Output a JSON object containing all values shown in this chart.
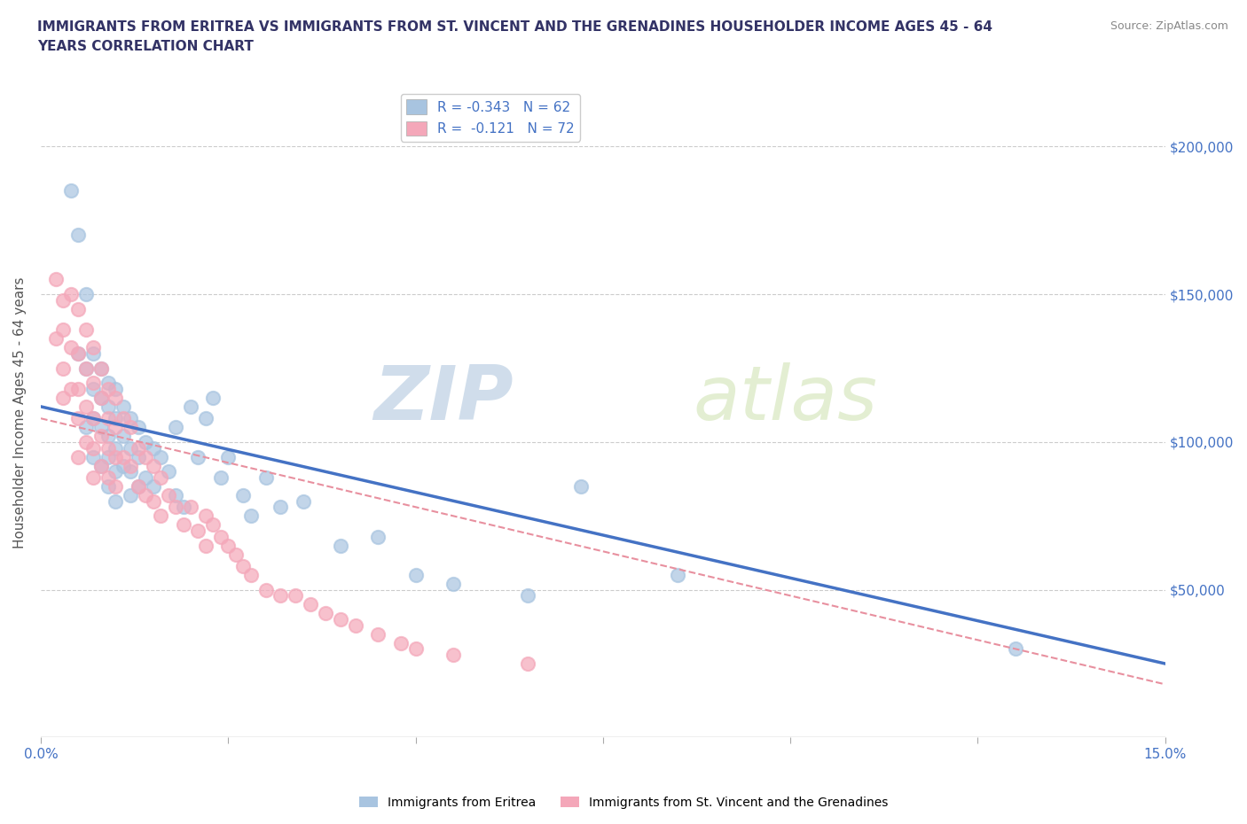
{
  "title_line1": "IMMIGRANTS FROM ERITREA VS IMMIGRANTS FROM ST. VINCENT AND THE GRENADINES HOUSEHOLDER INCOME AGES 45 - 64",
  "title_line2": "YEARS CORRELATION CHART",
  "source_text": "Source: ZipAtlas.com",
  "ylabel": "Householder Income Ages 45 - 64 years",
  "xlim": [
    0.0,
    0.15
  ],
  "ylim": [
    0,
    220000
  ],
  "xticks": [
    0.0,
    0.025,
    0.05,
    0.075,
    0.1,
    0.125,
    0.15
  ],
  "ytick_positions": [
    50000,
    100000,
    150000,
    200000
  ],
  "ytick_labels": [
    "$50,000",
    "$100,000",
    "$150,000",
    "$200,000"
  ],
  "r_eritrea": -0.343,
  "n_eritrea": 62,
  "r_stvincent": -0.121,
  "n_stvincent": 72,
  "color_eritrea": "#a8c4e0",
  "color_stvincent": "#f4a7b9",
  "color_line_eritrea": "#4472c4",
  "color_line_stvincent": "#e8909f",
  "watermark_zip": "ZIP",
  "watermark_atlas": "atlas",
  "legend_label_eritrea": "Immigrants from Eritrea",
  "legend_label_stvincent": "Immigrants from St. Vincent and the Grenadines",
  "eritrea_x": [
    0.004,
    0.005,
    0.005,
    0.006,
    0.006,
    0.006,
    0.007,
    0.007,
    0.007,
    0.007,
    0.008,
    0.008,
    0.008,
    0.008,
    0.009,
    0.009,
    0.009,
    0.009,
    0.009,
    0.01,
    0.01,
    0.01,
    0.01,
    0.01,
    0.011,
    0.011,
    0.011,
    0.012,
    0.012,
    0.012,
    0.012,
    0.013,
    0.013,
    0.013,
    0.014,
    0.014,
    0.015,
    0.015,
    0.016,
    0.017,
    0.018,
    0.018,
    0.019,
    0.02,
    0.021,
    0.022,
    0.023,
    0.024,
    0.025,
    0.027,
    0.028,
    0.03,
    0.032,
    0.035,
    0.04,
    0.045,
    0.05,
    0.055,
    0.065,
    0.072,
    0.085,
    0.13
  ],
  "eritrea_y": [
    185000,
    170000,
    130000,
    150000,
    125000,
    105000,
    130000,
    118000,
    108000,
    95000,
    125000,
    115000,
    105000,
    92000,
    120000,
    112000,
    102000,
    95000,
    85000,
    118000,
    108000,
    98000,
    90000,
    80000,
    112000,
    102000,
    92000,
    108000,
    98000,
    90000,
    82000,
    105000,
    95000,
    85000,
    100000,
    88000,
    98000,
    85000,
    95000,
    90000,
    105000,
    82000,
    78000,
    112000,
    95000,
    108000,
    115000,
    88000,
    95000,
    82000,
    75000,
    88000,
    78000,
    80000,
    65000,
    68000,
    55000,
    52000,
    48000,
    85000,
    55000,
    30000
  ],
  "stvincent_x": [
    0.002,
    0.002,
    0.003,
    0.003,
    0.003,
    0.003,
    0.004,
    0.004,
    0.004,
    0.005,
    0.005,
    0.005,
    0.005,
    0.005,
    0.006,
    0.006,
    0.006,
    0.006,
    0.007,
    0.007,
    0.007,
    0.007,
    0.007,
    0.008,
    0.008,
    0.008,
    0.008,
    0.009,
    0.009,
    0.009,
    0.009,
    0.01,
    0.01,
    0.01,
    0.01,
    0.011,
    0.011,
    0.012,
    0.012,
    0.013,
    0.013,
    0.014,
    0.014,
    0.015,
    0.015,
    0.016,
    0.016,
    0.017,
    0.018,
    0.019,
    0.02,
    0.021,
    0.022,
    0.022,
    0.023,
    0.024,
    0.025,
    0.026,
    0.027,
    0.028,
    0.03,
    0.032,
    0.034,
    0.036,
    0.038,
    0.04,
    0.042,
    0.045,
    0.048,
    0.05,
    0.055,
    0.065
  ],
  "stvincent_y": [
    155000,
    135000,
    148000,
    138000,
    125000,
    115000,
    150000,
    132000,
    118000,
    145000,
    130000,
    118000,
    108000,
    95000,
    138000,
    125000,
    112000,
    100000,
    132000,
    120000,
    108000,
    98000,
    88000,
    125000,
    115000,
    102000,
    92000,
    118000,
    108000,
    98000,
    88000,
    115000,
    105000,
    95000,
    85000,
    108000,
    95000,
    105000,
    92000,
    98000,
    85000,
    95000,
    82000,
    92000,
    80000,
    88000,
    75000,
    82000,
    78000,
    72000,
    78000,
    70000,
    75000,
    65000,
    72000,
    68000,
    65000,
    62000,
    58000,
    55000,
    50000,
    48000,
    48000,
    45000,
    42000,
    40000,
    38000,
    35000,
    32000,
    30000,
    28000,
    25000
  ],
  "trendline_eritrea_x0": 0.0,
  "trendline_eritrea_y0": 112000,
  "trendline_eritrea_x1": 0.15,
  "trendline_eritrea_y1": 25000,
  "trendline_stvincent_x0": 0.0,
  "trendline_stvincent_y0": 108000,
  "trendline_stvincent_x1": 0.15,
  "trendline_stvincent_y1": 18000
}
